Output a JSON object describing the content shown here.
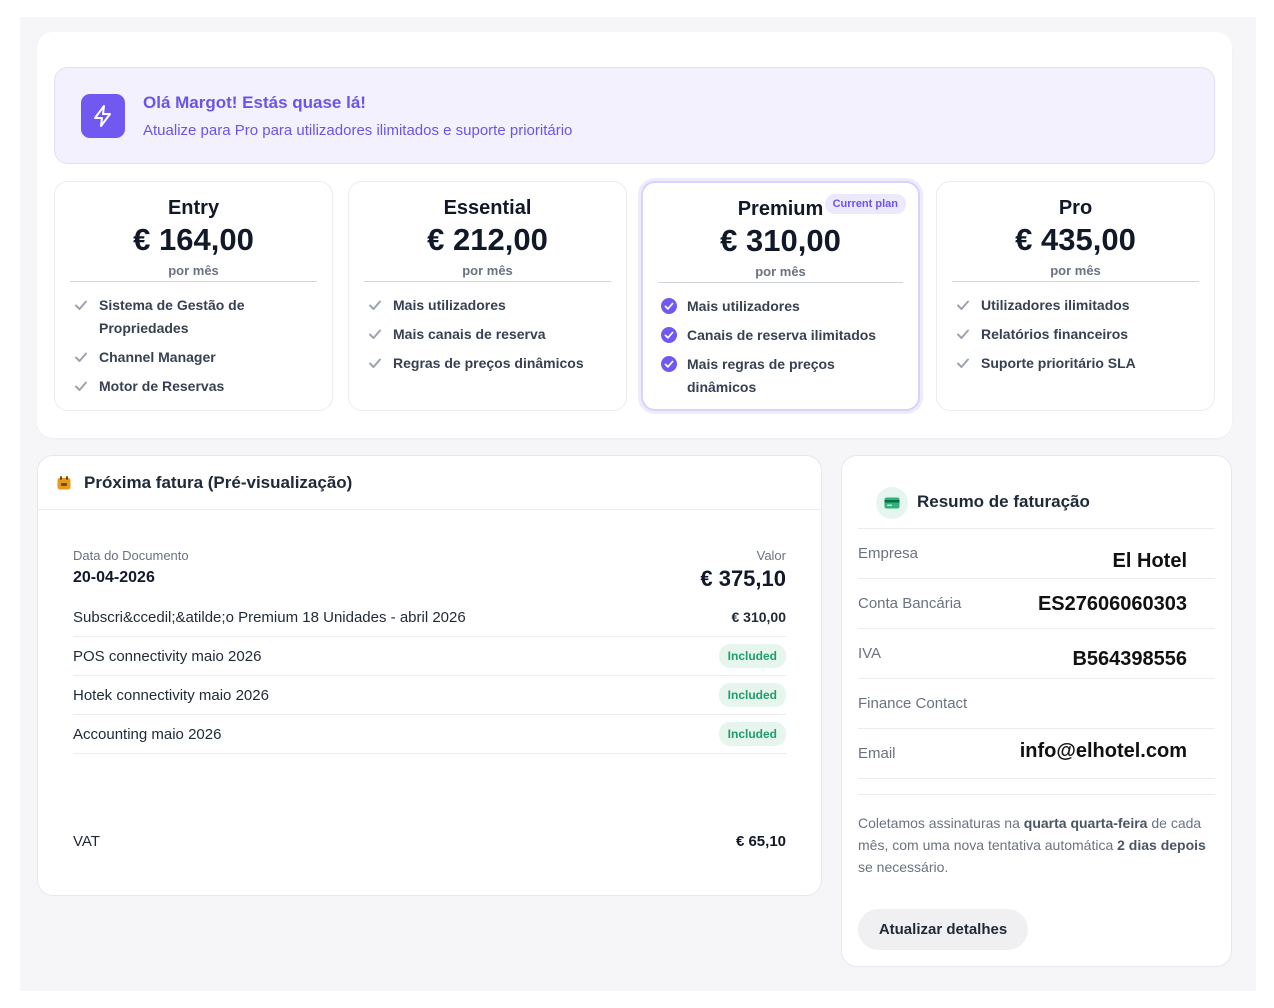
{
  "banner": {
    "title": "Olá Margot! Estás quase lá!",
    "subtitle": "Atualize para Pro para utilizadores ilimitados e suporte prioritário",
    "icon": "lightning-icon",
    "accent": "#7158f0"
  },
  "plans": [
    {
      "name": "Entry",
      "price": "€ 164,00",
      "period": "por mês",
      "current": false,
      "features": [
        "Sistema de Gestão de Propriedades",
        "Channel Manager",
        "Motor de Reservas"
      ]
    },
    {
      "name": "Essential",
      "price": "€ 212,00",
      "period": "por mês",
      "current": false,
      "features": [
        "Mais utilizadores",
        "Mais canais de reserva",
        "Regras de preços dinâmicos"
      ]
    },
    {
      "name": "Premium",
      "price": "€ 310,00",
      "period": "por mês",
      "current": true,
      "badge": "Current plan",
      "features": [
        "Mais utilizadores",
        "Canais de reserva ilimitados",
        "Mais regras de preços dinâmicos"
      ]
    },
    {
      "name": "Pro",
      "price": "€ 435,00",
      "period": "por mês",
      "current": false,
      "features": [
        "Utilizadores ilimitados",
        "Relatórios financeiros",
        "Suporte prioritário SLA"
      ]
    }
  ],
  "invoice": {
    "title": "Próxima fatura (Pré-visualização)",
    "icon": "calendar-icon",
    "doc_label": "Data do Documento",
    "doc_date": "20-04-2026",
    "value_label": "Valor",
    "total": "€ 375,10",
    "lines": [
      {
        "desc": "Subscri&ccedil;&atilde;o Premium 18 Unidades - abril 2026",
        "amount": "€ 310,00",
        "included": false
      },
      {
        "desc": "POS connectivity maio 2026",
        "amount": "Included",
        "included": true
      },
      {
        "desc": "Hotek connectivity maio 2026",
        "amount": "Included",
        "included": true
      },
      {
        "desc": "Accounting maio 2026",
        "amount": "Included",
        "included": true
      }
    ],
    "vat_label": "VAT",
    "vat": "€ 65,10"
  },
  "billing": {
    "title": "Resumo de faturação",
    "icon": "credit-card-icon",
    "rows": [
      {
        "key": "Empresa",
        "value": "El Hotel"
      },
      {
        "key": "Conta Bancária",
        "value": "ES27606060303"
      },
      {
        "key": "IVA",
        "value": "B564398556"
      },
      {
        "key": "Finance Contact",
        "value": ""
      },
      {
        "key": "Email",
        "value": "info@elhotel.com"
      }
    ],
    "note_pre": "Coletamos assinaturas na ",
    "note_day": "quarta quarta-feira",
    "note_mid": " de cada mês, com uma nova tentativa automática ",
    "note_days": "2 dias depois",
    "note_post": " se necessário.",
    "button": "Atualizar detalhes"
  }
}
